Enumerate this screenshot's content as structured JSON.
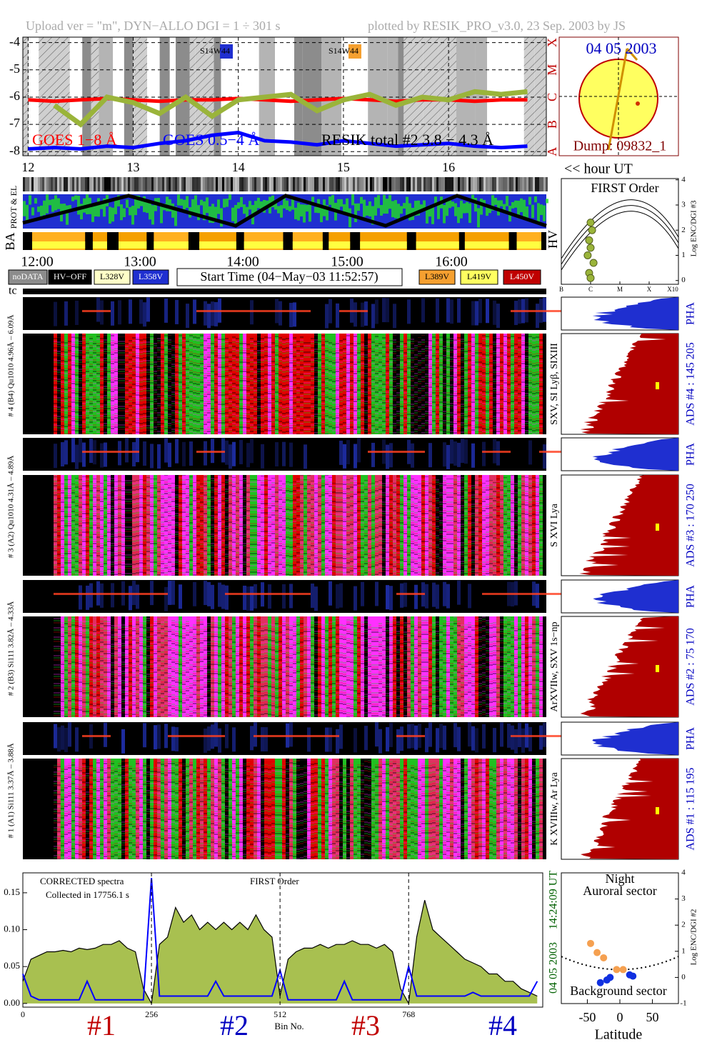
{
  "header": {
    "left": "Upload ver = \"m\", DYN−ALLO DGI =   1 ÷ 301 s",
    "right": "plotted by RESIK_PRO_v3.0, 23 Sep. 2003 by JS"
  },
  "sun": {
    "date": "04 05 2003",
    "dump": "Dump: 09832_1"
  },
  "panels": {
    "hour_label": "<< hour UT",
    "timeline": [
      "12:00",
      "13:00",
      "14:00",
      "15:00",
      "16:00"
    ],
    "strip_labels": [
      "PROT & EL",
      "BA"
    ],
    "legend": [
      {
        "label": "noDATA",
        "color": "#8c8c8c"
      },
      {
        "label": "HV−OFF",
        "color": "#000000"
      },
      {
        "label": "L328V",
        "color": "#ffffc8"
      },
      {
        "label": "L358V",
        "color": "#1f2fd0"
      },
      {
        "label": "L389V",
        "color": "#f5a030"
      },
      {
        "label": "L419V",
        "color": "#ffff60"
      },
      {
        "label": "L450V",
        "color": "#c00000"
      }
    ],
    "start_time": "Start Time (04−May−03 11:52:57)",
    "tc": "tc"
  },
  "detectors": [
    {
      "label": "# 4 (B4) Qu1010 4.96Å – 6.09Å",
      "ads": "ADS #4 :  145 205",
      "lines": "SXV, SI Lyβ, SIXIII",
      "pha": "PHA"
    },
    {
      "label": "# 3 (A2) Qu1010 4.31Å – 4.89Å",
      "ads": "ADS #3 :  170 250",
      "lines": "S XVI Lya",
      "pha": "PHA"
    },
    {
      "label": "# 2 (B3) Si111 3.82Å – 4.33Å",
      "ads": "ADS #2 :  75 170",
      "lines": "ArXVIIw, SXV 1s−np",
      "pha": "PHA"
    },
    {
      "label": "# 1 (A1) Si111 3.37Å – 3.88Å",
      "ads": "ADS #1 :  115 195",
      "lines": "K XVIIIw, Ar Lya",
      "pha": "PHA"
    }
  ],
  "chart_data": [
    {
      "type": "line",
      "xlim": [
        11.95,
        16.93
      ],
      "xticks": [
        12,
        13,
        14,
        15,
        16
      ],
      "ylim": [
        -8.15,
        -3.8
      ],
      "yticks": [
        -4,
        -5,
        -6,
        -7,
        -8
      ],
      "y2ticks": [
        {
          "value": -4,
          "label": "X"
        },
        {
          "value": -5,
          "label": "M"
        },
        {
          "value": -6,
          "label": "C"
        },
        {
          "value": -7,
          "label": "B"
        },
        {
          "value": -8,
          "label": "A"
        }
      ],
      "x": [
        12,
        12.25,
        12.5,
        12.75,
        13,
        13.25,
        13.5,
        13.75,
        14,
        14.25,
        14.5,
        14.75,
        15,
        15.25,
        15.5,
        15.75,
        16,
        16.25,
        16.5,
        16.75
      ],
      "series": [
        {
          "name": "GOES 1−8 Å",
          "color": "#ff0000",
          "values": [
            -6.1,
            -6.15,
            -6.1,
            -6.05,
            -6.1,
            -6.15,
            -6.1,
            -6.1,
            -6.05,
            -6.1,
            -6.15,
            -6.1,
            -6.05,
            -6.1,
            -6.15,
            -6.1,
            -6.1,
            -6.15,
            -6.1,
            -6.1
          ]
        },
        {
          "name": "GOES 0.5−4 Å",
          "color": "#0000ff",
          "values": [
            -7.9,
            -7.85,
            -7.9,
            -7.8,
            -7.85,
            -7.7,
            -7.6,
            -7.4,
            -7.3,
            -7.6,
            -7.65,
            -7.75,
            -7.6,
            -7.7,
            -7.8,
            -7.75,
            -7.7,
            -7.8,
            -7.85,
            -7.8
          ]
        },
        {
          "name": "RESIK total #2 3.8 − 4.3 Å",
          "color": "#9ab43a",
          "values": [
            null,
            -6.3,
            -7.0,
            -6.0,
            -6.2,
            -6.6,
            -6.0,
            -6.7,
            -6.1,
            -6.0,
            -5.9,
            -6.5,
            -6.1,
            -5.9,
            -6.3,
            -6.0,
            -6.1,
            -5.8,
            -5.9,
            -5.8
          ]
        }
      ],
      "annotations": [
        "S14W44",
        "S14W44"
      ]
    },
    {
      "type": "scatter",
      "title": "FIRST Order",
      "x_label": "HV",
      "y_label": "Log ENC/DGI #3",
      "xlim": [
        0,
        4
      ],
      "xticks": [
        {
          "value": 0,
          "label": "B"
        },
        {
          "value": 1,
          "label": "C"
        },
        {
          "value": 2,
          "label": "M"
        },
        {
          "value": 3,
          "label": "X"
        },
        {
          "value": 4,
          "label": "X10"
        }
      ],
      "ylim": [
        -0.15,
        4.05
      ],
      "yticks": [
        0,
        1,
        2,
        3,
        4
      ],
      "series": [
        {
          "color": "#9ab43a",
          "x": [
            1.0,
            1.05,
            0.95,
            1.0,
            0.9,
            1.1,
            0.95,
            1.0
          ],
          "values": [
            2.3,
            2.0,
            1.6,
            1.3,
            1.0,
            0.7,
            0.3,
            0.1
          ]
        }
      ]
    },
    {
      "type": "line",
      "texts": [
        "CORRECTED spectra",
        "Collected in 17756.1 s",
        "FIRST Order"
      ],
      "date": "04 05 2003",
      "time": "14:24:09 UT",
      "x_label": "Bin No.",
      "sections": [
        "#1",
        "#2",
        "#3",
        "#4"
      ],
      "xlim": [
        0,
        1035
      ],
      "xticks": [
        0,
        256,
        512,
        768
      ],
      "ylim": [
        -0.005,
        0.177
      ],
      "yticks": [
        {
          "value": 0,
          "label": "0.00"
        },
        {
          "value": 0.05,
          "label": "0.05"
        },
        {
          "value": 0.1,
          "label": "0.10"
        },
        {
          "value": 0.15,
          "label": "0.15"
        }
      ],
      "x": [
        0,
        16,
        32,
        48,
        64,
        80,
        96,
        112,
        128,
        144,
        160,
        176,
        192,
        208,
        224,
        240,
        256,
        272,
        288,
        304,
        320,
        336,
        352,
        368,
        384,
        400,
        416,
        432,
        448,
        464,
        480,
        496,
        512,
        528,
        544,
        560,
        576,
        592,
        608,
        624,
        640,
        656,
        672,
        688,
        704,
        720,
        736,
        752,
        768,
        784,
        800,
        816,
        832,
        848,
        864,
        880,
        896,
        912,
        928,
        944,
        960,
        976,
        992,
        1008,
        1024
      ],
      "series": [
        {
          "color": "#000000",
          "fill": "#a8c050",
          "values": [
            0.03,
            0.06,
            0.065,
            0.07,
            0.07,
            0.072,
            0.07,
            0.075,
            0.073,
            0.075,
            0.08,
            0.08,
            0.085,
            0.075,
            0.07,
            0.02,
            0.0,
            0.08,
            0.09,
            0.13,
            0.11,
            0.12,
            0.1,
            0.11,
            0.1,
            0.11,
            0.1,
            0.11,
            0.1,
            0.12,
            0.1,
            0.09,
            0.01,
            0.06,
            0.07,
            0.075,
            0.075,
            0.08,
            0.075,
            0.08,
            0.08,
            0.085,
            0.08,
            0.08,
            0.075,
            0.08,
            0.07,
            0.02,
            0.0,
            0.09,
            0.14,
            0.1,
            0.09,
            0.08,
            0.07,
            0.06,
            0.055,
            0.05,
            0.04,
            0.04,
            0.03,
            0.03,
            0.02,
            0.015,
            0.01
          ]
        },
        {
          "color": "#0000ff",
          "values": [
            0.04,
            0.01,
            0.005,
            0.005,
            0.005,
            0.005,
            0.005,
            0.005,
            0.03,
            0.005,
            0.005,
            0.005,
            0.005,
            0.005,
            0.005,
            0.005,
            0.17,
            0.01,
            0.01,
            0.01,
            0.01,
            0.01,
            0.01,
            0.01,
            0.03,
            0.01,
            0.01,
            0.01,
            0.01,
            0.01,
            0.01,
            0.01,
            0.045,
            0.005,
            0.005,
            0.005,
            0.005,
            0.005,
            0.005,
            0.005,
            0.03,
            0.005,
            0.005,
            0.005,
            0.005,
            0.005,
            0.005,
            0.005,
            0.05,
            0.01,
            0.01,
            0.01,
            0.01,
            0.01,
            0.01,
            0.01,
            0.015,
            0.01,
            0.01,
            0.01,
            0.01,
            0.01,
            0.01,
            0.01,
            0.03
          ]
        }
      ]
    },
    {
      "type": "scatter",
      "texts": [
        "Night",
        "Auroral sector",
        "Background sector"
      ],
      "x_label": "Latitude",
      "y_label": "Log ENC/DGI #2",
      "xlim": [
        -90,
        90
      ],
      "xticks": [
        -50,
        0,
        50
      ],
      "ylim": [
        -1,
        4
      ],
      "yticks": [
        -1,
        0,
        1,
        2,
        3,
        4
      ],
      "series": [
        {
          "color": "#f5a050",
          "x": [
            -45,
            -35,
            -25,
            -5,
            5
          ],
          "values": [
            1.3,
            0.95,
            0.75,
            0.3,
            0.3
          ]
        },
        {
          "color": "#1030e0",
          "x": [
            15,
            20,
            -20,
            -30,
            -15
          ],
          "values": [
            0.1,
            0.05,
            -0.1,
            -0.2,
            0.0
          ]
        }
      ]
    }
  ]
}
